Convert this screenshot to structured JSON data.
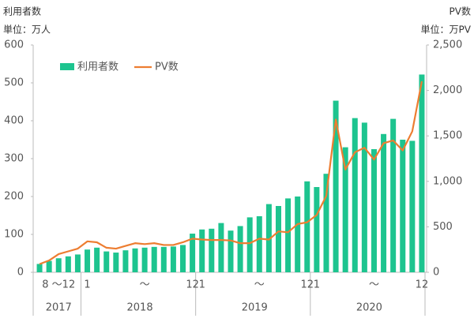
{
  "chart_data": {
    "type": "bar_line",
    "y_title": "利用者数",
    "y_unit": "単位：万人",
    "y2_title": "PV数",
    "y2_unit": "単位：万PV",
    "categories": [
      null,
      null,
      "8 ～12",
      null,
      null,
      "1",
      null,
      null,
      null,
      null,
      null,
      "～",
      null,
      null,
      null,
      null,
      "12",
      "1",
      null,
      null,
      null,
      null,
      null,
      "～",
      null,
      null,
      null,
      null,
      "12",
      "1",
      null,
      null,
      null,
      null,
      null,
      "～",
      null,
      null,
      null,
      null,
      "12"
    ],
    "year_labels": [
      "2017",
      "2018",
      "2019",
      "2020"
    ],
    "series": [
      {
        "name": "利用者数",
        "type": "bar",
        "color": "#1dc48f",
        "values": [
          22,
          30,
          37,
          42,
          47,
          60,
          65,
          55,
          52,
          58,
          63,
          65,
          67,
          67,
          68,
          72,
          102,
          113,
          115,
          130,
          110,
          122,
          145,
          148,
          180,
          175,
          195,
          200,
          240,
          225,
          260,
          453,
          330,
          407,
          395,
          325,
          365,
          405,
          350,
          347,
          522
        ]
      },
      {
        "name": "PV数",
        "type": "line",
        "axis": "y2",
        "color": "#ed7d31",
        "values": [
          90,
          130,
          200,
          230,
          260,
          340,
          330,
          270,
          260,
          290,
          320,
          310,
          320,
          300,
          300,
          330,
          370,
          360,
          355,
          355,
          350,
          320,
          320,
          370,
          360,
          450,
          440,
          530,
          550,
          630,
          840,
          1680,
          1130,
          1320,
          1370,
          1240,
          1420,
          1450,
          1340,
          1550,
          2100
        ]
      }
    ],
    "ylim": [
      0,
      600
    ],
    "yticks": [
      0,
      100,
      200,
      300,
      400,
      500,
      600
    ],
    "y2lim": [
      0,
      2500
    ],
    "y2ticks": [
      0,
      500,
      {
        "value": 1000,
        "label": "1,000"
      },
      {
        "value": 1500,
        "label": "1,500"
      },
      {
        "value": 2000,
        "label": "2,000"
      },
      {
        "value": 2500,
        "label": "2,500"
      }
    ],
    "grid": false,
    "legend": "upper left"
  }
}
